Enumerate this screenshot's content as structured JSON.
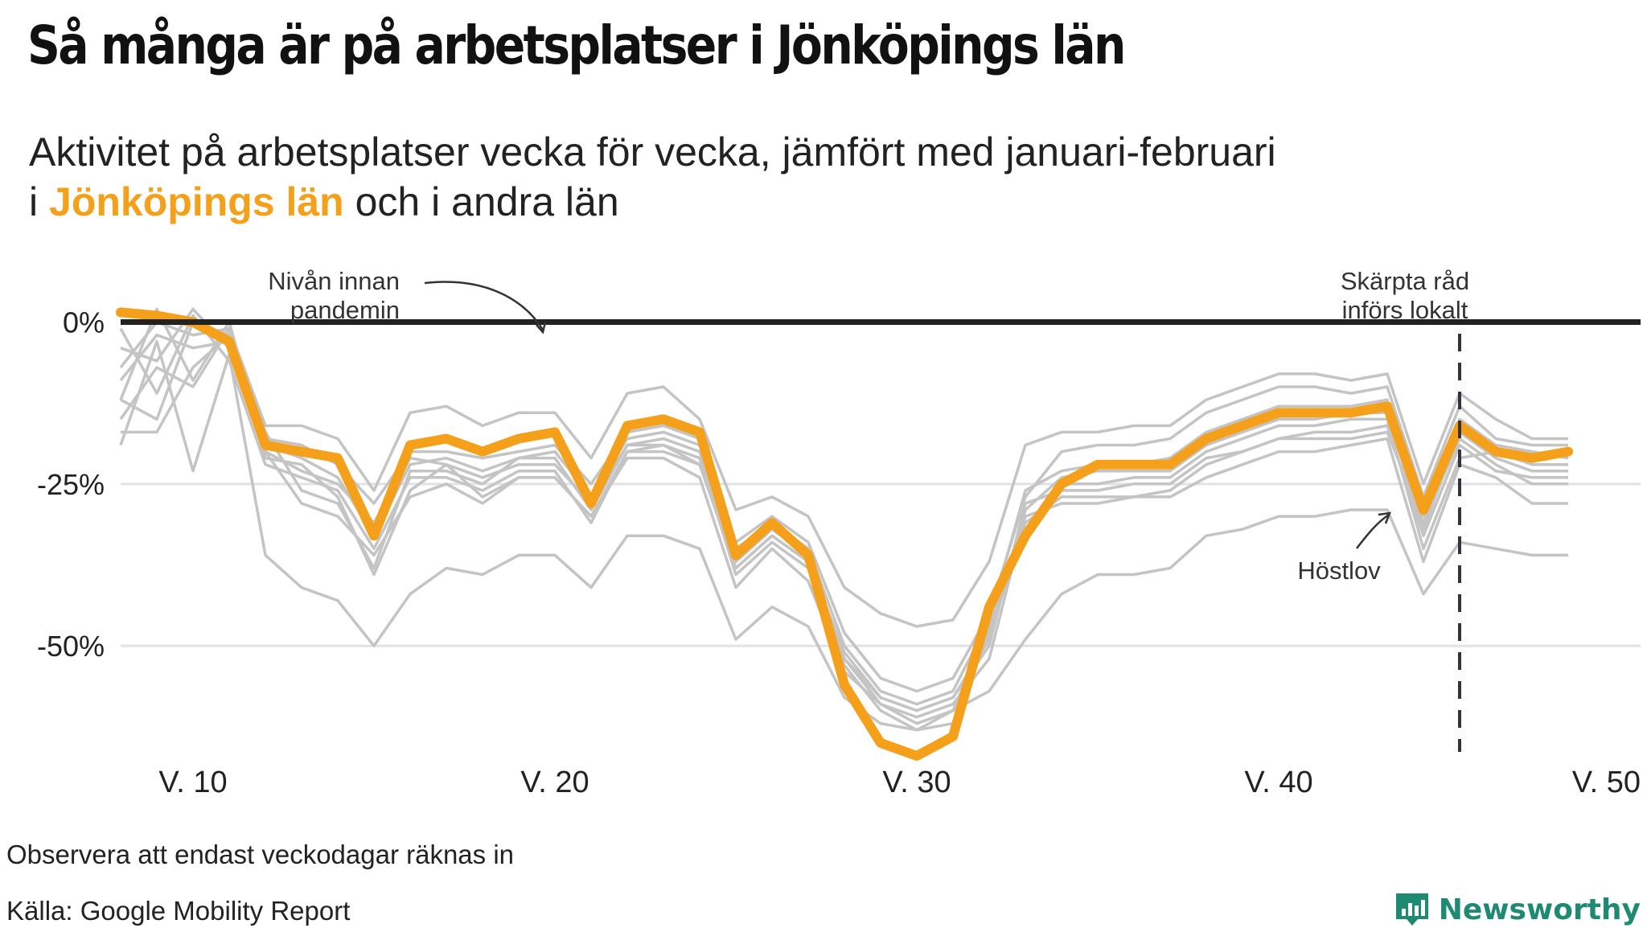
{
  "title": "Så många är på arbetsplatser i Jönköpings län",
  "subtitle": {
    "line1": "Aktivitet på arbetsplatser vecka för vecka, jämfört med januari-februari",
    "line2_prefix": "i",
    "line2_highlight": "Jönköpings län",
    "line2_suffix": "och i andra län"
  },
  "footer": {
    "note": "Observera att endast veckodagar räknas in",
    "source": "Källa: Google Mobility Report"
  },
  "brand": {
    "name": "Newsworthy",
    "icon": "newsworthy-logo-icon"
  },
  "colors": {
    "highlight": "#f5a01a",
    "other": "#c4c4c4",
    "baseline": "#222222",
    "grid": "#e2e2e2",
    "vline": "#333340",
    "brand": "#1f8a72"
  },
  "chart_data": {
    "type": "line",
    "title": "Så många är på arbetsplatser i Jönköpings län",
    "xlabel": "",
    "ylabel": "",
    "xlim": [
      8,
      50
    ],
    "ylim": [
      -67,
      10
    ],
    "x_ticks": [
      10,
      20,
      30,
      40,
      50
    ],
    "x_tick_labels": [
      "V. 10",
      "V. 20",
      "V. 30",
      "V. 40",
      "V. 50"
    ],
    "y_ticks": [
      0,
      -25,
      -50
    ],
    "y_tick_labels": [
      "0%",
      "-25%",
      "-50%"
    ],
    "grid": "horizontal",
    "highlight_series": {
      "name": "Jönköpings län",
      "x": [
        8,
        9,
        10,
        11,
        12,
        13,
        14,
        15,
        16,
        17,
        18,
        19,
        20,
        21,
        22,
        23,
        24,
        25,
        26,
        27,
        28,
        29,
        30,
        31,
        32,
        33,
        34,
        35,
        36,
        37,
        38,
        39,
        40,
        41,
        42,
        43,
        44,
        45,
        46,
        47,
        48
      ],
      "values": [
        1.5,
        1,
        0,
        -3,
        -19,
        -20,
        -21,
        -33,
        -19,
        -18,
        -20,
        -18,
        -17,
        -28,
        -16,
        -15,
        -17,
        -36,
        -31,
        -36,
        -56,
        -65,
        -67,
        -64,
        -44,
        -33,
        -25,
        -22,
        -22,
        -22,
        -18,
        -16,
        -14,
        -14,
        -14,
        -13,
        -29,
        -16,
        -20,
        -21,
        -20
      ]
    },
    "other_series": [
      {
        "x": [
          8,
          9,
          10,
          11,
          12,
          13,
          14,
          15,
          16,
          17,
          18,
          19,
          20,
          21,
          22,
          23,
          24,
          25,
          26,
          27,
          28,
          29,
          30,
          31,
          32,
          33,
          34,
          35,
          36,
          37,
          38,
          39,
          40,
          41,
          42,
          43,
          44,
          45,
          46,
          47,
          48
        ],
        "values": [
          -19,
          -3,
          -23,
          -5,
          -36,
          -41,
          -43,
          -50,
          -42,
          -38,
          -39,
          -36,
          -36,
          -41,
          -33,
          -33,
          -35,
          -49,
          -44,
          -47,
          -58,
          -62,
          -63,
          -60,
          -57,
          -49,
          -42,
          -39,
          -39,
          -38,
          -33,
          -32,
          -30,
          -30,
          -29,
          -29,
          -42,
          -34,
          -35,
          -36,
          -36
        ]
      },
      {
        "x": [
          8,
          9,
          10,
          11,
          12,
          13,
          14,
          15,
          16,
          17,
          18,
          19,
          20,
          21,
          22,
          23,
          24,
          25,
          26,
          27,
          28,
          29,
          30,
          31,
          32,
          33,
          34,
          35,
          36,
          37,
          38,
          39,
          40,
          41,
          42,
          43,
          44,
          45,
          46,
          47,
          48
        ],
        "values": [
          -12,
          2,
          -9,
          0,
          -20,
          -28,
          -30,
          -36,
          -27,
          -25,
          -28,
          -24,
          -24,
          -30,
          -21,
          -21,
          -24,
          -41,
          -35,
          -40,
          -54,
          -59,
          -61,
          -59,
          -52,
          -30,
          -28,
          -28,
          -27,
          -27,
          -24,
          -22,
          -20,
          -20,
          -19,
          -18,
          -37,
          -22,
          -24,
          -28,
          -28
        ]
      },
      {
        "x": [
          8,
          9,
          10,
          11,
          12,
          13,
          14,
          15,
          16,
          17,
          18,
          19,
          20,
          21,
          22,
          23,
          24,
          25,
          26,
          27,
          28,
          29,
          30,
          31,
          32,
          33,
          34,
          35,
          36,
          37,
          38,
          39,
          40,
          41,
          42,
          43,
          44,
          45,
          46,
          47,
          48
        ],
        "values": [
          -17,
          -17,
          -7,
          -2,
          -17,
          -26,
          -28,
          -38,
          -23,
          -23,
          -25,
          -21,
          -21,
          -29,
          -19,
          -18,
          -20,
          -38,
          -33,
          -37,
          -51,
          -58,
          -60,
          -58,
          -50,
          -28,
          -26,
          -26,
          -25,
          -25,
          -21,
          -20,
          -18,
          -17,
          -17,
          -16,
          -33,
          -19,
          -23,
          -24,
          -24
        ]
      },
      {
        "x": [
          8,
          9,
          10,
          11,
          12,
          13,
          14,
          15,
          16,
          17,
          18,
          19,
          20,
          21,
          22,
          23,
          24,
          25,
          26,
          27,
          28,
          29,
          30,
          31,
          32,
          33,
          34,
          35,
          36,
          37,
          38,
          39,
          40,
          41,
          42,
          43,
          44,
          45,
          46,
          47,
          48
        ],
        "values": [
          -7,
          0,
          -2,
          -1,
          -16,
          -16,
          -18,
          -26,
          -14,
          -13,
          -16,
          -14,
          -14,
          -21,
          -11,
          -10,
          -15,
          -29,
          -27,
          -30,
          -41,
          -45,
          -47,
          -46,
          -37,
          -19,
          -17,
          -17,
          -16,
          -16,
          -12,
          -10,
          -8,
          -8,
          -9,
          -8,
          -25,
          -11,
          -15,
          -18,
          -18
        ]
      },
      {
        "x": [
          8,
          9,
          10,
          11,
          12,
          13,
          14,
          15,
          16,
          17,
          18,
          19,
          20,
          21,
          22,
          23,
          24,
          25,
          26,
          27,
          28,
          29,
          30,
          31,
          32,
          33,
          34,
          35,
          36,
          37,
          38,
          39,
          40,
          41,
          42,
          43,
          44,
          45,
          46,
          47,
          48
        ],
        "values": [
          -4,
          -6,
          2,
          -4,
          -18,
          -19,
          -22,
          -28,
          -20,
          -20,
          -21,
          -20,
          -19,
          -25,
          -17,
          -16,
          -18,
          -34,
          -30,
          -34,
          -48,
          -55,
          -57,
          -55,
          -45,
          -27,
          -20,
          -19,
          -19,
          -18,
          -14,
          -12,
          -10,
          -10,
          -11,
          -10,
          -27,
          -13,
          -18,
          -19,
          -19
        ]
      },
      {
        "x": [
          8,
          9,
          10,
          11,
          12,
          13,
          14,
          15,
          16,
          17,
          18,
          19,
          20,
          21,
          22,
          23,
          24,
          25,
          26,
          27,
          28,
          29,
          30,
          31,
          32,
          33,
          34,
          35,
          36,
          37,
          38,
          39,
          40,
          41,
          42,
          43,
          44,
          45,
          46,
          47,
          48
        ],
        "values": [
          -1,
          -11,
          1,
          -6,
          -22,
          -24,
          -26,
          -35,
          -24,
          -24,
          -26,
          -23,
          -23,
          -31,
          -20,
          -20,
          -22,
          -37,
          -32,
          -36,
          -52,
          -59,
          -62,
          -60,
          -47,
          -31,
          -27,
          -27,
          -27,
          -26,
          -22,
          -20,
          -18,
          -18,
          -18,
          -17,
          -31,
          -18,
          -22,
          -25,
          -25
        ]
      },
      {
        "x": [
          8,
          9,
          10,
          11,
          12,
          13,
          14,
          15,
          16,
          17,
          18,
          19,
          20,
          21,
          22,
          23,
          24,
          25,
          26,
          27,
          28,
          29,
          30,
          31,
          32,
          33,
          34,
          35,
          36,
          37,
          38,
          39,
          40,
          41,
          42,
          43,
          44,
          45,
          46,
          47,
          48
        ],
        "values": [
          -15,
          -7,
          -10,
          -1,
          -20,
          -23,
          -25,
          -31,
          -21,
          -22,
          -24,
          -22,
          -22,
          -28,
          -19,
          -19,
          -21,
          -39,
          -34,
          -38,
          -53,
          -60,
          -63,
          -62,
          -48,
          -32,
          -25,
          -25,
          -24,
          -24,
          -20,
          -18,
          -16,
          -16,
          -15,
          -15,
          -35,
          -21,
          -20,
          -22,
          -22
        ]
      },
      {
        "x": [
          8,
          9,
          10,
          11,
          12,
          13,
          14,
          15,
          16,
          17,
          18,
          19,
          20,
          21,
          22,
          23,
          24,
          25,
          26,
          27,
          28,
          29,
          30,
          31,
          32,
          33,
          34,
          35,
          36,
          37,
          38,
          39,
          40,
          41,
          42,
          43,
          44,
          45,
          46,
          47,
          48
        ],
        "values": [
          -9,
          -2,
          -4,
          -3,
          -19,
          -21,
          -24,
          -33,
          -22,
          -21,
          -23,
          -21,
          -20,
          -27,
          -18,
          -17,
          -19,
          -35,
          -31,
          -35,
          -50,
          -57,
          -59,
          -57,
          -46,
          -26,
          -23,
          -22,
          -22,
          -21,
          -17,
          -15,
          -13,
          -13,
          -13,
          -12,
          -30,
          -15,
          -19,
          -20,
          -21
        ]
      },
      {
        "x": [
          8,
          9,
          10,
          11,
          12,
          13,
          14,
          15,
          16,
          17,
          18,
          19,
          20,
          21,
          22,
          23,
          24,
          25,
          26,
          27,
          28,
          29,
          30,
          31,
          32,
          33,
          34,
          35,
          36,
          37,
          38,
          39,
          40,
          41,
          42,
          43,
          44,
          45,
          46,
          47,
          48
        ],
        "values": [
          -12,
          -15,
          0,
          -2,
          -21,
          -22,
          -27,
          -39,
          -26,
          -22,
          -27,
          -24,
          -24,
          -30,
          -20,
          -19,
          -22,
          -38,
          -33,
          -37,
          -52,
          -58,
          -60,
          -58,
          -49,
          -29,
          -24,
          -23,
          -23,
          -23,
          -19,
          -17,
          -15,
          -15,
          -14,
          -14,
          -32,
          -17,
          -21,
          -23,
          -23
        ]
      }
    ],
    "annotations": [
      {
        "id": "pre-pandemic",
        "line1": "Nivån innan",
        "line2": "pandemin"
      },
      {
        "id": "restrictions",
        "line1": "Skärpta råd",
        "line2": "införs lokalt",
        "x": 45
      },
      {
        "id": "autumn-break",
        "text": "Höstlov",
        "x": 44
      }
    ]
  }
}
